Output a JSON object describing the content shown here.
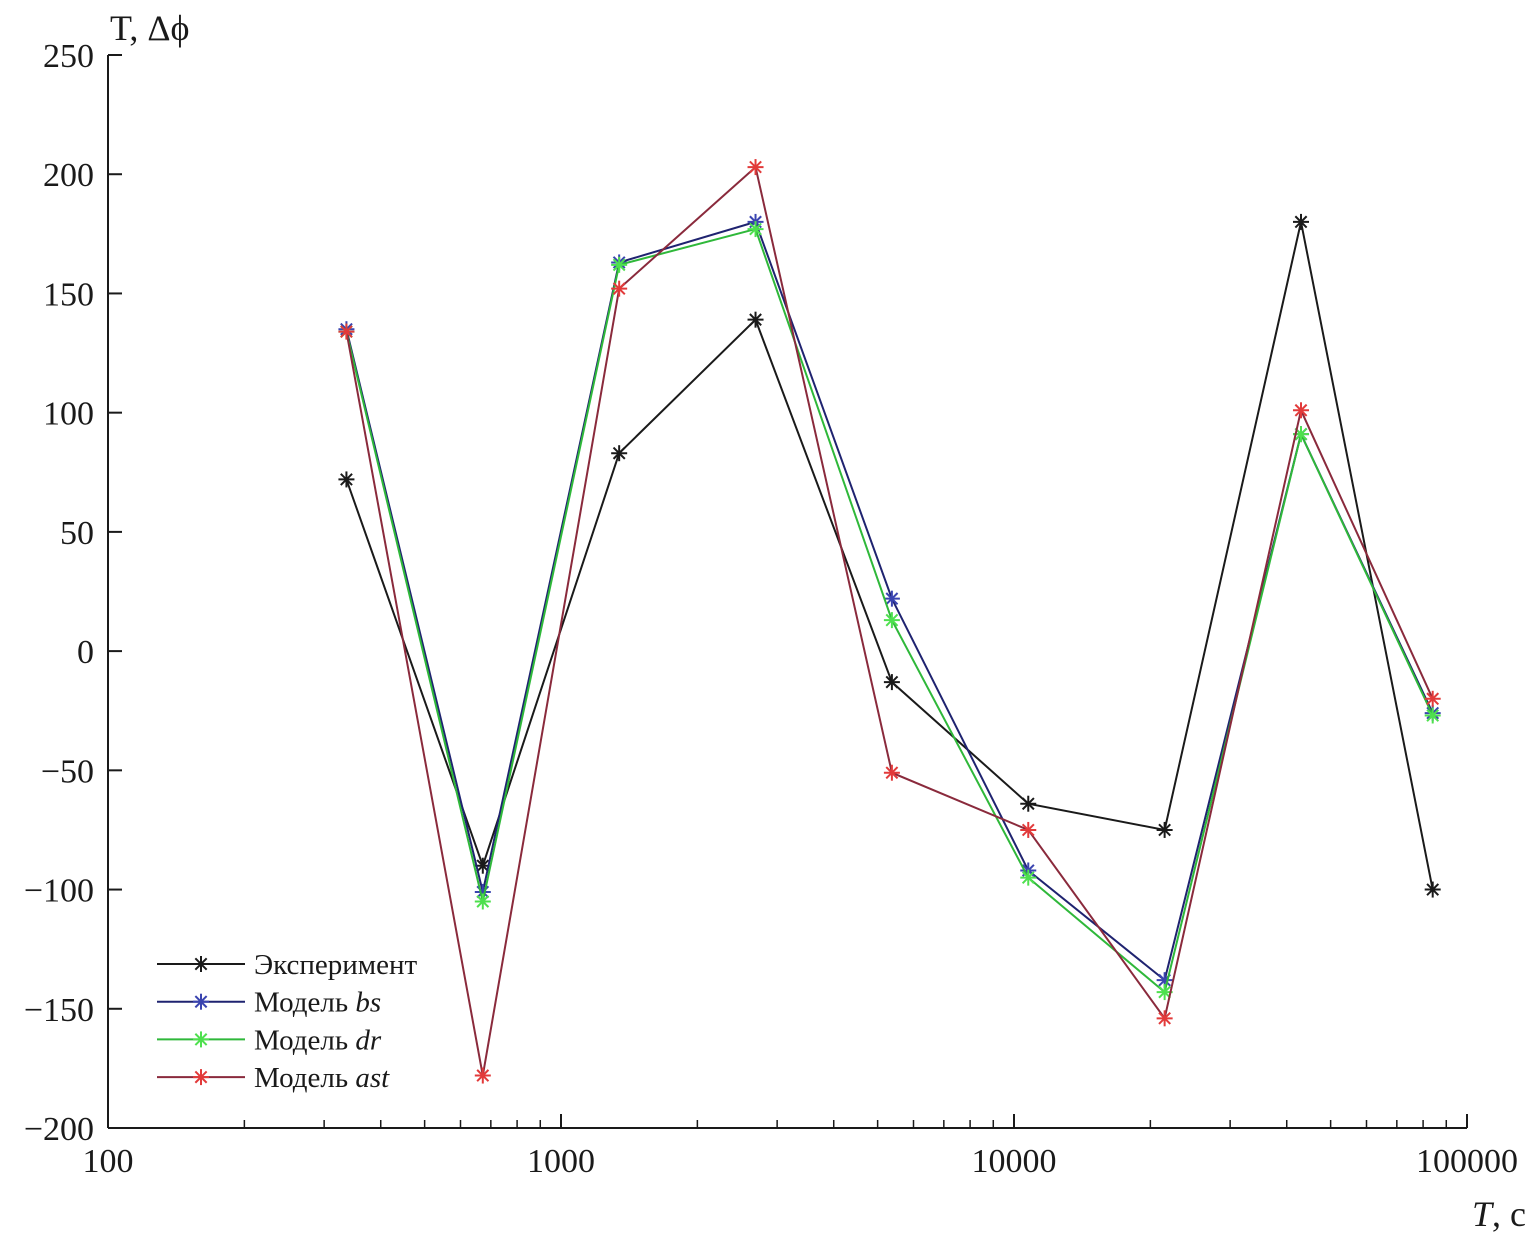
{
  "chart_data": {
    "type": "line",
    "title": "",
    "ylabel": "T, Δϕ",
    "xlabel_italic": "T",
    "xlabel_rest": ", с",
    "xscale": "log",
    "xlim": [
      100,
      100000
    ],
    "ylim": [
      -200,
      250
    ],
    "x_ticks": [
      100,
      1000,
      10000,
      100000
    ],
    "x_tick_labels": [
      "100",
      "1000",
      "10000",
      "100000"
    ],
    "y_ticks": [
      250,
      200,
      150,
      100,
      50,
      0,
      -50,
      -100,
      -150,
      -200
    ],
    "y_tick_labels": [
      "250",
      "200",
      "150",
      "100",
      "50",
      "0",
      "−50",
      "−100",
      "−150",
      "−200"
    ],
    "grid": false,
    "legend_position": "bottom-left",
    "x": [
      336,
      672,
      1344,
      2688,
      5376,
      10752,
      21504,
      43008,
      84000
    ],
    "series": [
      {
        "name": "Эксперимент",
        "name_prefix": "Эксперимент",
        "name_italic": "",
        "line_color": "#1a1a1a",
        "marker_color": "#1a1a1a",
        "values": [
          72,
          -90,
          83,
          139,
          -13,
          -64,
          -75,
          180,
          -100
        ]
      },
      {
        "name": "Модель bs",
        "name_prefix": "Модель ",
        "name_italic": "bs",
        "line_color": "#1f2370",
        "marker_color": "#3a44b0",
        "values": [
          135,
          -101,
          163,
          180,
          22,
          -92,
          -138,
          91,
          -26
        ]
      },
      {
        "name": "Модель dr",
        "name_prefix": "Модель ",
        "name_italic": "dr",
        "line_color": "#2fb83a",
        "marker_color": "#4ee04e",
        "values": [
          134,
          -105,
          162,
          177,
          13,
          -95,
          -143,
          91,
          -27
        ]
      },
      {
        "name": "Модель ast",
        "name_prefix": "Модель ",
        "name_italic": "ast",
        "line_color": "#8a2a3c",
        "marker_color": "#e23a3a",
        "values": [
          134,
          -178,
          152,
          203,
          -51,
          -75,
          -154,
          101,
          -20
        ]
      }
    ]
  }
}
